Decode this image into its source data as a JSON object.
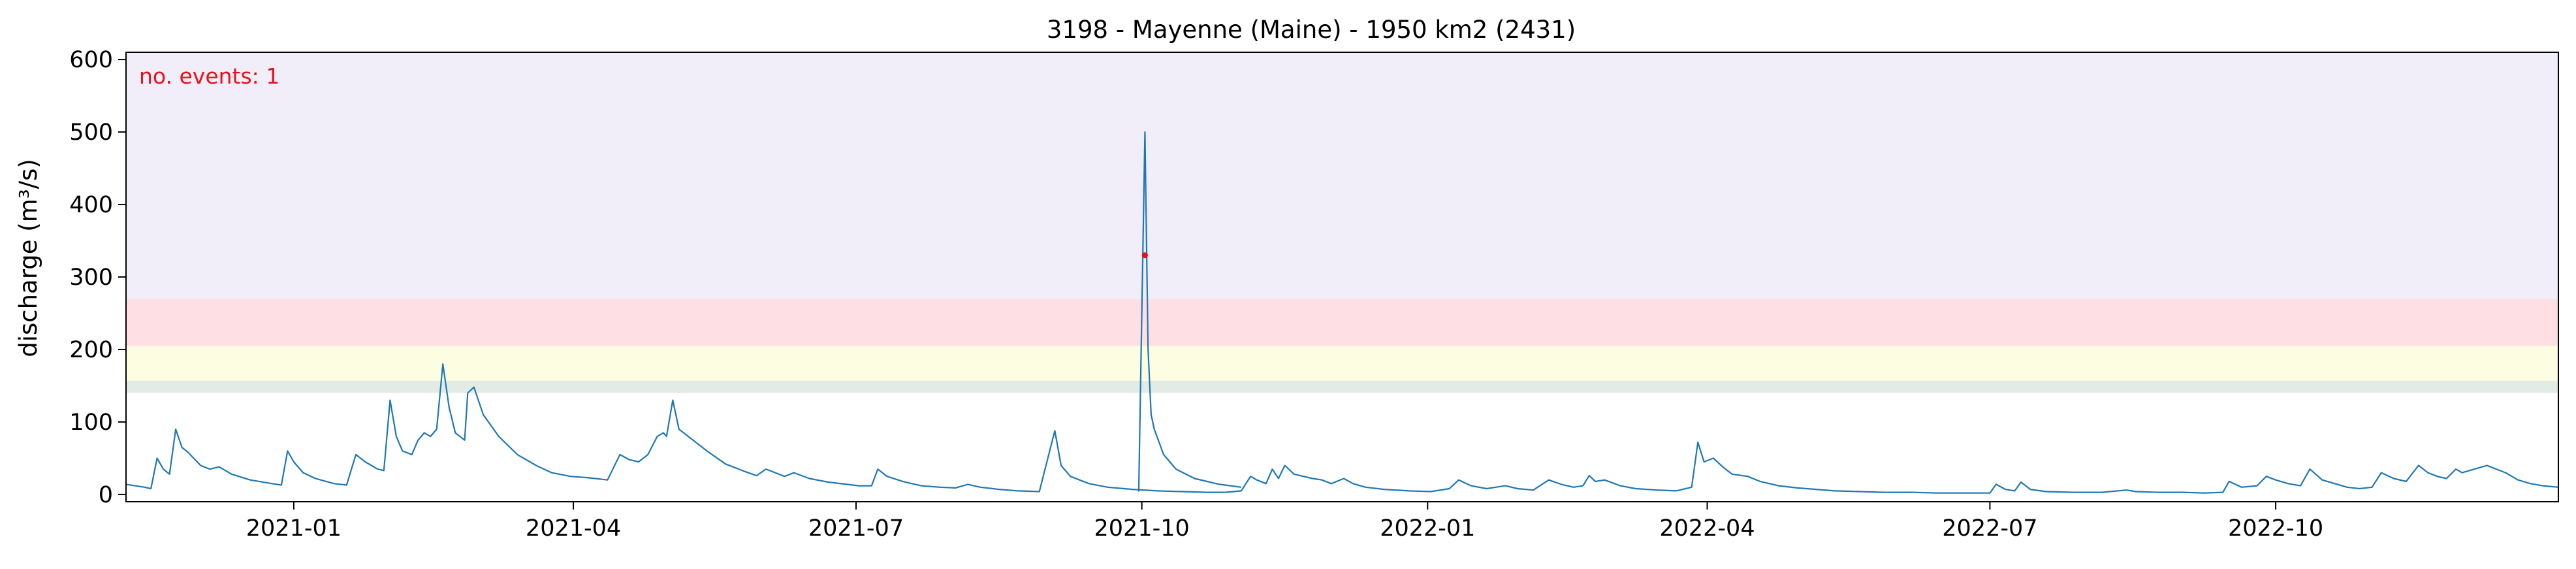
{
  "chart_data": {
    "type": "line",
    "title": "3198 - Mayenne (Maine) - 1950 km2 (2431)",
    "xlabel": "",
    "ylabel": "discharge (m³/s)",
    "xlim": [
      "2020-11-08",
      "2022-12-31"
    ],
    "ylim": [
      -10,
      610
    ],
    "yticks": [
      0,
      100,
      200,
      300,
      400,
      500,
      600
    ],
    "xticks": [
      "2021-01-01",
      "2021-04-01",
      "2021-07-01",
      "2021-10-01",
      "2022-01-01",
      "2022-04-01",
      "2022-07-01",
      "2022-10-01"
    ],
    "xtick_labels": [
      "2021-01",
      "2021-04",
      "2021-07",
      "2021-10",
      "2022-01",
      "2022-04",
      "2022-07",
      "2022-10"
    ],
    "grid": false,
    "annotation": {
      "text": "no. events: 1",
      "color": "#e8111a"
    },
    "threshold_bands": [
      {
        "from": 140,
        "to": 157,
        "color": "#e3ece4"
      },
      {
        "from": 157,
        "to": 205,
        "color": "#fdfde1"
      },
      {
        "from": 205,
        "to": 270,
        "color": "#fee0e4"
      },
      {
        "from": 270,
        "to": 610,
        "color": "#f1eefa"
      }
    ],
    "series": [
      {
        "color": "#1f77b4",
        "points": [
          [
            "2020-11-08",
            14
          ],
          [
            "2020-11-14",
            10
          ],
          [
            "2020-11-16",
            8
          ],
          [
            "2020-11-18",
            50
          ],
          [
            "2020-11-20",
            35
          ],
          [
            "2020-11-22",
            28
          ],
          [
            "2020-11-24",
            90
          ],
          [
            "2020-11-26",
            65
          ],
          [
            "2020-11-28",
            58
          ],
          [
            "2020-12-02",
            40
          ],
          [
            "2020-12-05",
            35
          ],
          [
            "2020-12-08",
            38
          ],
          [
            "2020-12-12",
            28
          ],
          [
            "2020-12-18",
            20
          ],
          [
            "2020-12-25",
            15
          ],
          [
            "2020-12-28",
            13
          ],
          [
            "2020-12-30",
            60
          ],
          [
            "2021-01-01",
            45
          ],
          [
            "2021-01-04",
            30
          ],
          [
            "2021-01-08",
            22
          ],
          [
            "2021-01-14",
            15
          ],
          [
            "2021-01-18",
            13
          ],
          [
            "2021-01-21",
            55
          ],
          [
            "2021-01-24",
            45
          ],
          [
            "2021-01-28",
            35
          ],
          [
            "2021-01-30",
            33
          ],
          [
            "2021-02-01",
            130
          ],
          [
            "2021-02-03",
            80
          ],
          [
            "2021-02-05",
            60
          ],
          [
            "2021-02-08",
            55
          ],
          [
            "2021-02-10",
            75
          ],
          [
            "2021-02-12",
            85
          ],
          [
            "2021-02-14",
            80
          ],
          [
            "2021-02-16",
            90
          ],
          [
            "2021-02-18",
            180
          ],
          [
            "2021-02-20",
            120
          ],
          [
            "2021-02-22",
            85
          ],
          [
            "2021-02-25",
            75
          ],
          [
            "2021-02-26",
            140
          ],
          [
            "2021-02-28",
            148
          ],
          [
            "2021-03-03",
            110
          ],
          [
            "2021-03-08",
            80
          ],
          [
            "2021-03-14",
            55
          ],
          [
            "2021-03-20",
            40
          ],
          [
            "2021-03-25",
            30
          ],
          [
            "2021-03-31",
            25
          ],
          [
            "2021-04-06",
            23
          ],
          [
            "2021-04-12",
            20
          ],
          [
            "2021-04-16",
            55
          ],
          [
            "2021-04-19",
            48
          ],
          [
            "2021-04-22",
            45
          ],
          [
            "2021-04-25",
            55
          ],
          [
            "2021-04-28",
            80
          ],
          [
            "2021-04-30",
            85
          ],
          [
            "2021-05-01",
            80
          ],
          [
            "2021-05-03",
            130
          ],
          [
            "2021-05-05",
            90
          ],
          [
            "2021-05-08",
            80
          ],
          [
            "2021-05-14",
            60
          ],
          [
            "2021-05-20",
            42
          ],
          [
            "2021-05-26",
            32
          ],
          [
            "2021-05-30",
            26
          ],
          [
            "2021-06-02",
            35
          ],
          [
            "2021-06-05",
            30
          ],
          [
            "2021-06-08",
            25
          ],
          [
            "2021-06-11",
            30
          ],
          [
            "2021-06-16",
            22
          ],
          [
            "2021-06-22",
            17
          ],
          [
            "2021-06-28",
            14
          ],
          [
            "2021-07-02",
            12
          ],
          [
            "2021-07-06",
            12
          ],
          [
            "2021-07-08",
            35
          ],
          [
            "2021-07-11",
            25
          ],
          [
            "2021-07-16",
            18
          ],
          [
            "2021-07-22",
            12
          ],
          [
            "2021-07-28",
            10
          ],
          [
            "2021-08-02",
            9
          ],
          [
            "2021-08-06",
            14
          ],
          [
            "2021-08-10",
            10
          ],
          [
            "2021-08-16",
            7
          ],
          [
            "2021-08-22",
            5
          ],
          [
            "2021-08-29",
            4
          ],
          [
            "2021-09-03",
            88
          ],
          [
            "2021-09-05",
            40
          ],
          [
            "2021-09-08",
            25
          ],
          [
            "2021-09-14",
            15
          ],
          [
            "2021-09-20",
            10
          ],
          [
            "2021-09-28",
            7
          ],
          [
            "2021-10-06",
            5
          ],
          [
            "2021-10-14",
            4
          ],
          [
            "2021-10-22",
            3
          ],
          [
            "2021-10-28",
            3
          ],
          [
            "2021-11-02",
            5
          ],
          [
            "2021-11-05",
            25
          ],
          [
            "2021-11-07",
            20
          ],
          [
            "2021-11-10",
            15
          ],
          [
            "2021-11-12",
            35
          ],
          [
            "2021-11-14",
            22
          ],
          [
            "2021-11-16",
            40
          ],
          [
            "2021-11-19",
            28
          ],
          [
            "2021-11-22",
            25
          ],
          [
            "2021-11-25",
            22
          ],
          [
            "2021-11-28",
            20
          ],
          [
            "2021-12-01",
            15
          ],
          [
            "2021-12-05",
            22
          ],
          [
            "2021-12-08",
            15
          ],
          [
            "2021-12-12",
            10
          ],
          [
            "2021-12-18",
            7
          ],
          [
            "2021-12-26",
            5
          ],
          [
            "2022-01-02",
            4
          ],
          [
            "2022-01-08",
            8
          ],
          [
            "2022-01-11",
            20
          ],
          [
            "2022-01-15",
            12
          ],
          [
            "2022-01-20",
            8
          ],
          [
            "2022-01-26",
            12
          ],
          [
            "2022-01-30",
            8
          ],
          [
            "2022-02-04",
            6
          ],
          [
            "2022-02-09",
            20
          ],
          [
            "2022-02-13",
            14
          ],
          [
            "2022-02-17",
            10
          ],
          [
            "2022-02-20",
            12
          ],
          [
            "2022-02-22",
            26
          ],
          [
            "2022-02-24",
            18
          ],
          [
            "2022-02-27",
            20
          ],
          [
            "2022-03-04",
            12
          ],
          [
            "2022-03-09",
            8
          ],
          [
            "2022-03-16",
            6
          ],
          [
            "2022-03-22",
            5
          ],
          [
            "2022-03-27",
            10
          ],
          [
            "2022-03-29",
            72
          ],
          [
            "2022-03-31",
            45
          ],
          [
            "2022-04-03",
            50
          ],
          [
            "2022-04-06",
            38
          ],
          [
            "2022-04-09",
            28
          ],
          [
            "2022-04-14",
            25
          ],
          [
            "2022-04-18",
            18
          ],
          [
            "2022-04-24",
            12
          ],
          [
            "2022-04-30",
            9
          ],
          [
            "2022-05-06",
            7
          ],
          [
            "2022-05-12",
            5
          ],
          [
            "2022-05-20",
            4
          ],
          [
            "2022-05-28",
            3
          ],
          [
            "2022-06-06",
            3
          ],
          [
            "2022-06-14",
            2
          ],
          [
            "2022-06-22",
            2
          ],
          [
            "2022-06-30",
            2
          ],
          [
            "2022-07-01",
            2
          ],
          [
            "2022-07-03",
            14
          ],
          [
            "2022-07-06",
            7
          ],
          [
            "2022-07-09",
            5
          ],
          [
            "2022-07-11",
            17
          ],
          [
            "2022-07-14",
            7
          ],
          [
            "2022-07-19",
            4
          ],
          [
            "2022-07-28",
            3
          ],
          [
            "2022-08-06",
            3
          ],
          [
            "2022-08-14",
            6
          ],
          [
            "2022-08-17",
            4
          ],
          [
            "2022-08-24",
            3
          ],
          [
            "2022-09-01",
            3
          ],
          [
            "2022-09-08",
            2
          ],
          [
            "2022-09-14",
            3
          ],
          [
            "2022-09-16",
            18
          ],
          [
            "2022-09-20",
            10
          ],
          [
            "2022-09-25",
            12
          ],
          [
            "2022-09-28",
            25
          ],
          [
            "2022-10-01",
            20
          ],
          [
            "2022-10-05",
            15
          ],
          [
            "2022-10-09",
            12
          ],
          [
            "2022-10-12",
            35
          ],
          [
            "2022-10-16",
            20
          ],
          [
            "2022-10-20",
            15
          ],
          [
            "2022-10-24",
            10
          ],
          [
            "2022-10-28",
            8
          ],
          [
            "2022-11-01",
            10
          ],
          [
            "2022-11-04",
            30
          ],
          [
            "2022-11-08",
            22
          ],
          [
            "2022-11-12",
            18
          ],
          [
            "2022-11-16",
            40
          ],
          [
            "2022-11-19",
            30
          ],
          [
            "2022-11-22",
            25
          ],
          [
            "2022-11-25",
            22
          ],
          [
            "2022-11-28",
            35
          ],
          [
            "2022-11-30",
            30
          ],
          [
            "2022-12-04",
            35
          ],
          [
            "2022-12-08",
            40
          ],
          [
            "2022-12-11",
            35
          ],
          [
            "2022-12-14",
            30
          ],
          [
            "2022-12-18",
            20
          ],
          [
            "2022-12-22",
            15
          ],
          [
            "2022-12-26",
            12
          ],
          [
            "2022-12-31",
            10
          ]
        ]
      }
    ],
    "event_markers": [
      {
        "x": "2021-10-02",
        "y": 330,
        "color": "#e8111a"
      }
    ]
  }
}
